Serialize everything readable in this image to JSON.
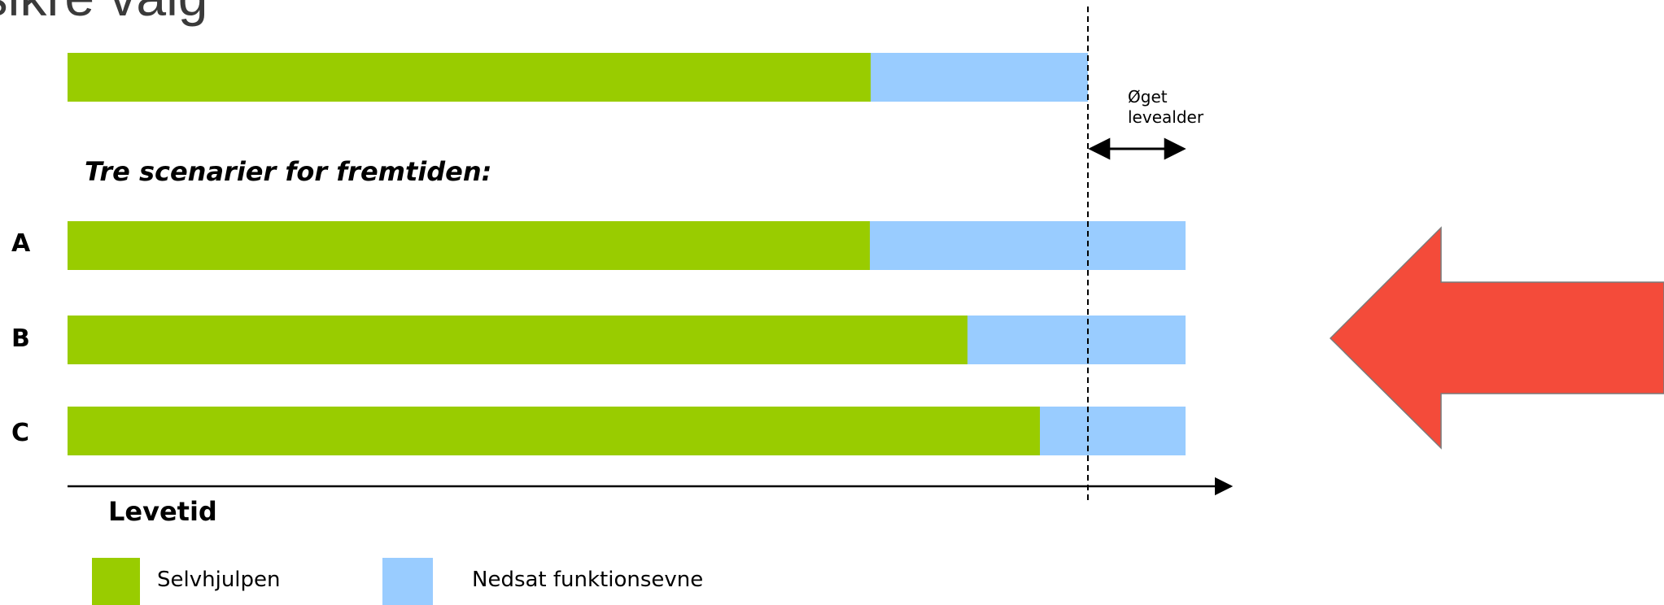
{
  "title": "t sikre valg",
  "top_bar_note": "Øget\nlevealder",
  "heading": "Tre scenarier for fremtiden:",
  "rows": [
    {
      "label": "A"
    },
    {
      "label": "B"
    },
    {
      "label": "C"
    }
  ],
  "axis_label": "Levetid",
  "legend": [
    {
      "label": "Selvhjulpen",
      "color": "#99cc00"
    },
    {
      "label": "Nedsat funktionsevne",
      "color": "#99ccff"
    }
  ],
  "colors": {
    "arrow": "#f44b3a"
  }
}
